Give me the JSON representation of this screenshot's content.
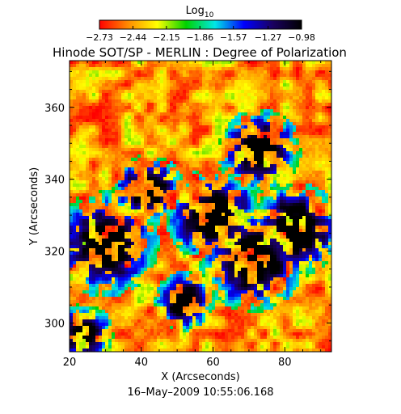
{
  "chart_data": {
    "type": "heatmap",
    "title": "Hinode SOT/SP - MERLIN : Degree of Polarization",
    "xlabel": "X (Arcseconds)",
    "ylabel": "Y (Arcseconds)",
    "xlim": [
      20,
      93
    ],
    "ylim": [
      292,
      373
    ],
    "x_ticks": [
      20,
      40,
      60,
      80
    ],
    "y_ticks": [
      300,
      320,
      340,
      360
    ],
    "x_tick_labels": [
      "20",
      "40",
      "60",
      "80"
    ],
    "y_tick_labels": [
      "300",
      "320",
      "340",
      "360"
    ],
    "colorbar": {
      "label": "Log",
      "label_subscript": "10",
      "range": [
        -2.73,
        -0.98
      ],
      "tick_values": [
        -2.73,
        -2.44,
        -2.15,
        -1.86,
        -1.57,
        -1.27,
        -0.98
      ],
      "tick_labels": [
        "−2.73",
        "−2.44",
        "−2.15",
        "−1.86",
        "−1.57",
        "−1.27",
        "−0.98"
      ],
      "colors": [
        "#ff0000",
        "#ff8c00",
        "#ffff00",
        "#00d200",
        "#00e6e6",
        "#0000ff",
        "#1a0060",
        "#000000"
      ]
    },
    "timestamp": "16–May–2009  10:55:06.168",
    "grid": false,
    "description_regions": [
      {
        "x": 30,
        "y": 322,
        "r": 9,
        "level": -1.35
      },
      {
        "x": 60,
        "y": 330,
        "r": 8,
        "level": -1.2
      },
      {
        "x": 71,
        "y": 318,
        "r": 9,
        "level": -1.25
      },
      {
        "x": 83,
        "y": 326,
        "r": 8,
        "level": -1.3
      },
      {
        "x": 73,
        "y": 348,
        "r": 7,
        "level": -1.45
      },
      {
        "x": 42,
        "y": 337,
        "r": 6,
        "level": -1.55
      },
      {
        "x": 24,
        "y": 297,
        "r": 5,
        "level": -1.2
      },
      {
        "x": 52,
        "y": 306,
        "r": 5,
        "level": -1.6
      }
    ]
  }
}
